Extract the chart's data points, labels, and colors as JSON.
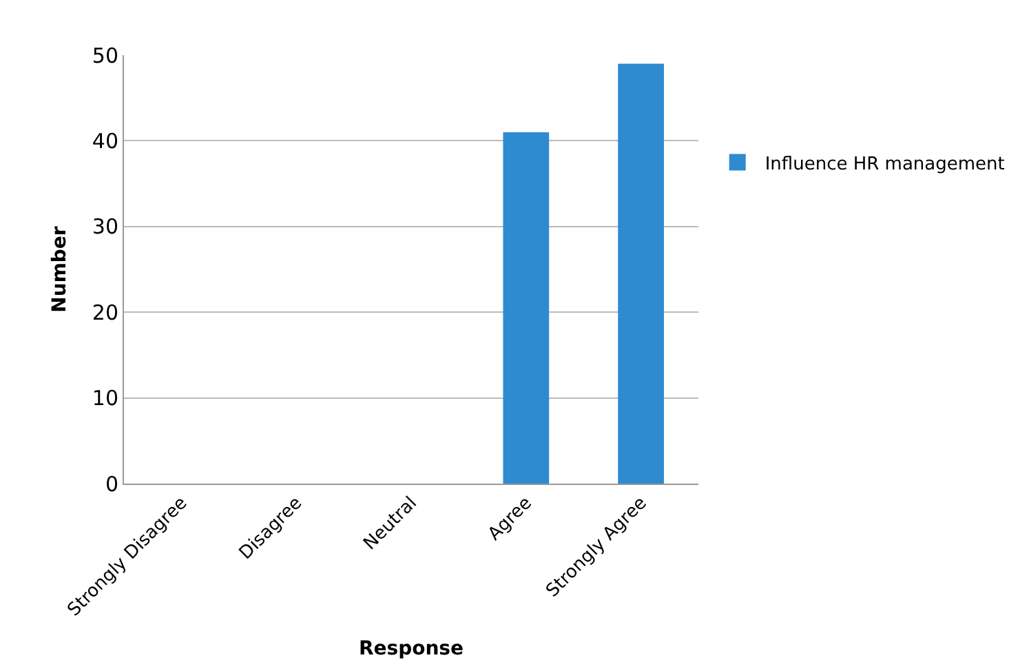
{
  "chart_data": {
    "type": "bar",
    "xlabel": "Response",
    "ylabel": "Number",
    "categories": [
      "Strongly Disagree",
      "Disagree",
      "Neutral",
      "Agree",
      "Strongly Agree"
    ],
    "series": [
      {
        "name": "Influence HR management",
        "color": "#2e8bd0",
        "values": [
          0,
          0,
          0,
          41,
          49
        ]
      }
    ],
    "ylim": [
      0,
      50
    ],
    "yticks": [
      0,
      10,
      20,
      30,
      40,
      50
    ],
    "grid": "y",
    "legend": "right"
  }
}
